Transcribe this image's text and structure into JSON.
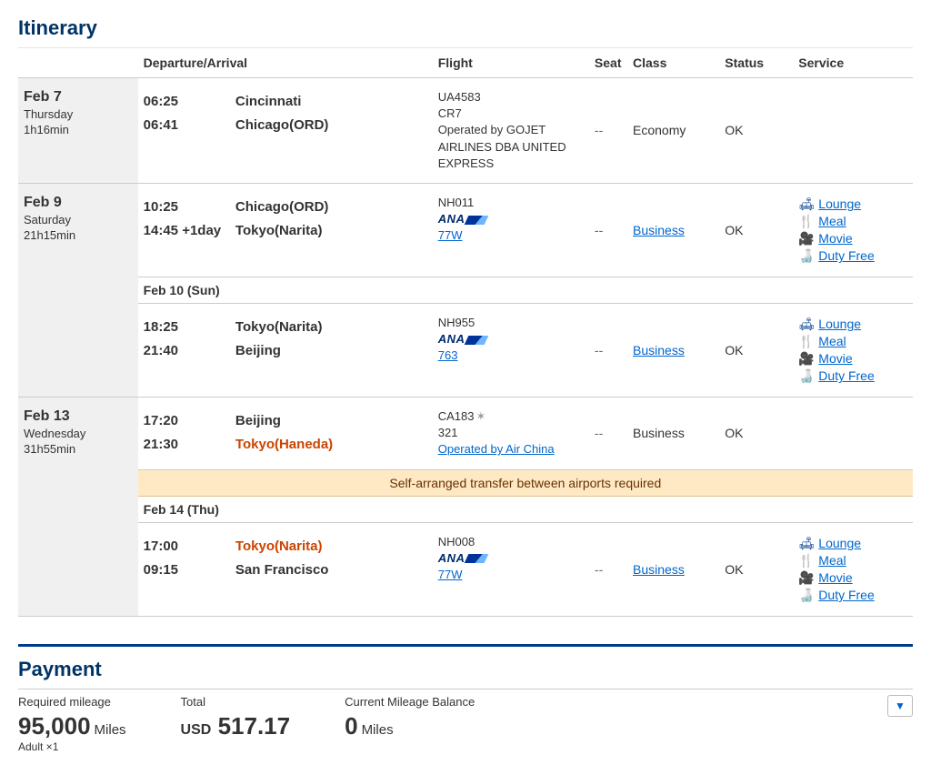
{
  "colors": {
    "heading": "#003366",
    "link": "#0066cc",
    "warn": "#cc4400",
    "dateBg": "#f0f0f0",
    "transferBg": "#ffe8c4"
  },
  "itinerary": {
    "title": "Itinerary",
    "columns": {
      "depArr": "Departure/Arrival",
      "flight": "Flight",
      "seat": "Seat",
      "class": "Class",
      "status": "Status",
      "service": "Service"
    },
    "serviceLabels": {
      "lounge": "Lounge",
      "meal": "Meal",
      "movie": "Movie",
      "dutyFree": "Duty Free"
    },
    "groups": [
      {
        "date": "Feb 7",
        "dow": "Thursday",
        "duration": "1h16min",
        "segments": [
          {
            "depTime": "06:25",
            "arrTime": "06:41",
            "depCity": "Cincinnati",
            "arrCity": "Chicago(ORD)",
            "flightNo": "UA4583",
            "aircraft": "CR7",
            "aircraftLink": false,
            "operatedBy": "Operated by GOJET AIRLINES DBA UNITED EXPRESS",
            "showAna": false,
            "hasStar": false,
            "seat": "--",
            "class": "Economy",
            "classLink": false,
            "status": "OK",
            "services": false
          }
        ]
      },
      {
        "date": "Feb 9",
        "dow": "Saturday",
        "duration": "21h15min",
        "segments": [
          {
            "depTime": "10:25",
            "arrTime": "14:45 +1day",
            "depCity": "Chicago(ORD)",
            "arrCity": "Tokyo(Narita)",
            "flightNo": "NH011",
            "aircraft": "77W",
            "aircraftLink": true,
            "showAna": true,
            "hasStar": false,
            "seat": "--",
            "class": "Business",
            "classLink": true,
            "status": "OK",
            "services": true
          },
          {
            "midDate": "Feb 10 (Sun)",
            "depTime": "18:25",
            "arrTime": "21:40",
            "depCity": "Tokyo(Narita)",
            "arrCity": "Beijing",
            "flightNo": "NH955",
            "aircraft": "763",
            "aircraftLink": true,
            "showAna": true,
            "hasStar": false,
            "seat": "--",
            "class": "Business",
            "classLink": true,
            "status": "OK",
            "services": true
          }
        ]
      },
      {
        "date": "Feb 13",
        "dow": "Wednesday",
        "duration": "31h55min",
        "segments": [
          {
            "depTime": "17:20",
            "arrTime": "21:30",
            "depCity": "Beijing",
            "arrCity": "Tokyo(Haneda)",
            "arrCityWarn": true,
            "flightNo": "CA183",
            "hasStar": true,
            "aircraft": "321",
            "aircraftLink": false,
            "operatedBy": "Operated by Air China",
            "operatedByLink": true,
            "showAna": false,
            "seat": "--",
            "class": "Business",
            "classLink": false,
            "status": "OK",
            "services": false
          },
          {
            "transferNote": "Self-arranged transfer between airports required",
            "midDate": "Feb 14 (Thu)",
            "depTime": "17:00",
            "arrTime": "09:15",
            "depCity": "Tokyo(Narita)",
            "depCityWarn": true,
            "arrCity": "San Francisco",
            "flightNo": "NH008",
            "aircraft": "77W",
            "aircraftLink": true,
            "showAna": true,
            "hasStar": false,
            "seat": "--",
            "class": "Business",
            "classLink": true,
            "status": "OK",
            "services": true
          }
        ]
      }
    ]
  },
  "payment": {
    "title": "Payment",
    "requiredLabel": "Required mileage",
    "requiredValue": "95,000",
    "milesUnit": "Miles",
    "adult": "Adult ×1",
    "totalLabel": "Total",
    "totalCurrency": "USD",
    "totalValue": "517.17",
    "balanceLabel": "Current Mileage Balance",
    "balanceValue": "0"
  }
}
